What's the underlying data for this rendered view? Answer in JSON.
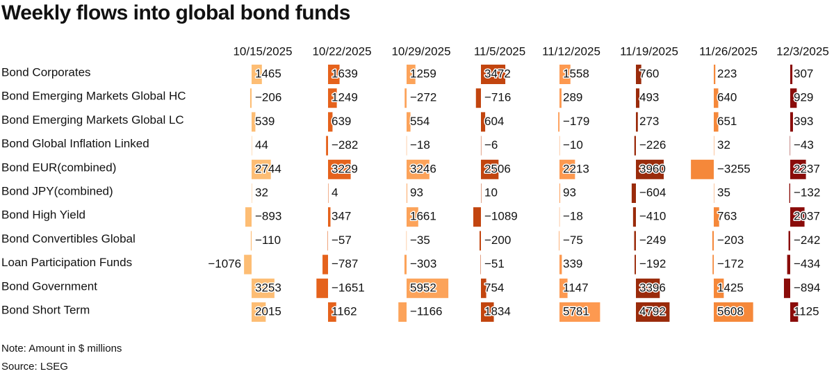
{
  "chart_data": {
    "type": "bar",
    "title": "Weekly flows into global bond funds",
    "categories": [
      "Bond Corporates",
      "Bond Emerging Markets Global HC",
      "Bond Emerging Markets Global LC",
      "Bond Global Inflation Linked",
      "Bond EUR(combined)",
      "Bond JPY(combined)",
      "Bond High Yield",
      "Bond Convertibles Global",
      "Loan Participation Funds",
      "Bond Government",
      "Bond Short Term"
    ],
    "series": [
      {
        "name": "10/15/2025",
        "color": "#fdbd74",
        "values": [
          1465,
          -206,
          539,
          44,
          2744,
          32,
          -893,
          -110,
          -1076,
          3253,
          2015
        ],
        "value_labels": [
          "1465",
          "−206",
          "539",
          "44",
          "2744",
          "32",
          "−893",
          "−110",
          "−1076",
          "3253",
          "2015"
        ]
      },
      {
        "name": "10/22/2025",
        "color": "#e5621c",
        "values": [
          1639,
          1249,
          639,
          -282,
          3229,
          4,
          347,
          -57,
          -787,
          -1651,
          1162
        ],
        "value_labels": [
          "1639",
          "1249",
          "639",
          "−282",
          "3229",
          "4",
          "347",
          "−57",
          "−787",
          "−1651",
          "1162"
        ]
      },
      {
        "name": "10/29/2025",
        "color": "#fca35a",
        "values": [
          1259,
          -272,
          554,
          -18,
          3246,
          93,
          1661,
          -35,
          -303,
          5952,
          -1166
        ],
        "value_labels": [
          "1259",
          "−272",
          "554",
          "−18",
          "3246",
          "93",
          "1661",
          "−35",
          "−303",
          "5952",
          "−1166"
        ]
      },
      {
        "name": "11/5/2025",
        "color": "#c2450f",
        "values": [
          3472,
          -716,
          604,
          -6,
          2506,
          10,
          -1089,
          -200,
          -51,
          754,
          1834
        ],
        "value_labels": [
          "3472",
          "−716",
          "604",
          "−6",
          "2506",
          "10",
          "−1089",
          "−200",
          "−51",
          "754",
          "1834"
        ]
      },
      {
        "name": "11/12/2025",
        "color": "#fd9950",
        "values": [
          1558,
          289,
          -179,
          -10,
          2213,
          93,
          -18,
          -75,
          339,
          1147,
          5781
        ],
        "value_labels": [
          "1558",
          "289",
          "−179",
          "−10",
          "2213",
          "93",
          "−18",
          "−75",
          "339",
          "1147",
          "5781"
        ]
      },
      {
        "name": "11/19/2025",
        "color": "#9a2b0b",
        "values": [
          760,
          493,
          273,
          -226,
          3960,
          -604,
          -410,
          -249,
          -192,
          3396,
          4792
        ],
        "value_labels": [
          "760",
          "493",
          "273",
          "−226",
          "3960",
          "−604",
          "−410",
          "−249",
          "−192",
          "3396",
          "4792"
        ]
      },
      {
        "name": "11/26/2025",
        "color": "#f5883a",
        "values": [
          223,
          640,
          651,
          32,
          -3255,
          35,
          763,
          -203,
          -172,
          1425,
          5608
        ],
        "value_labels": [
          "223",
          "640",
          "651",
          "32",
          "−3255",
          "35",
          "763",
          "−203",
          "−172",
          "1425",
          "5608"
        ]
      },
      {
        "name": "12/3/2025",
        "color": "#8a0c0a",
        "values": [
          307,
          929,
          393,
          -43,
          2237,
          -132,
          2037,
          -242,
          -434,
          -894,
          1125
        ],
        "value_labels": [
          "307",
          "929",
          "393",
          "−43",
          "2237",
          "−132",
          "2037",
          "−242",
          "−434",
          "−894",
          "1125"
        ]
      }
    ],
    "note": "Note: Amount in $ millions",
    "source": "Source: LSEG"
  }
}
